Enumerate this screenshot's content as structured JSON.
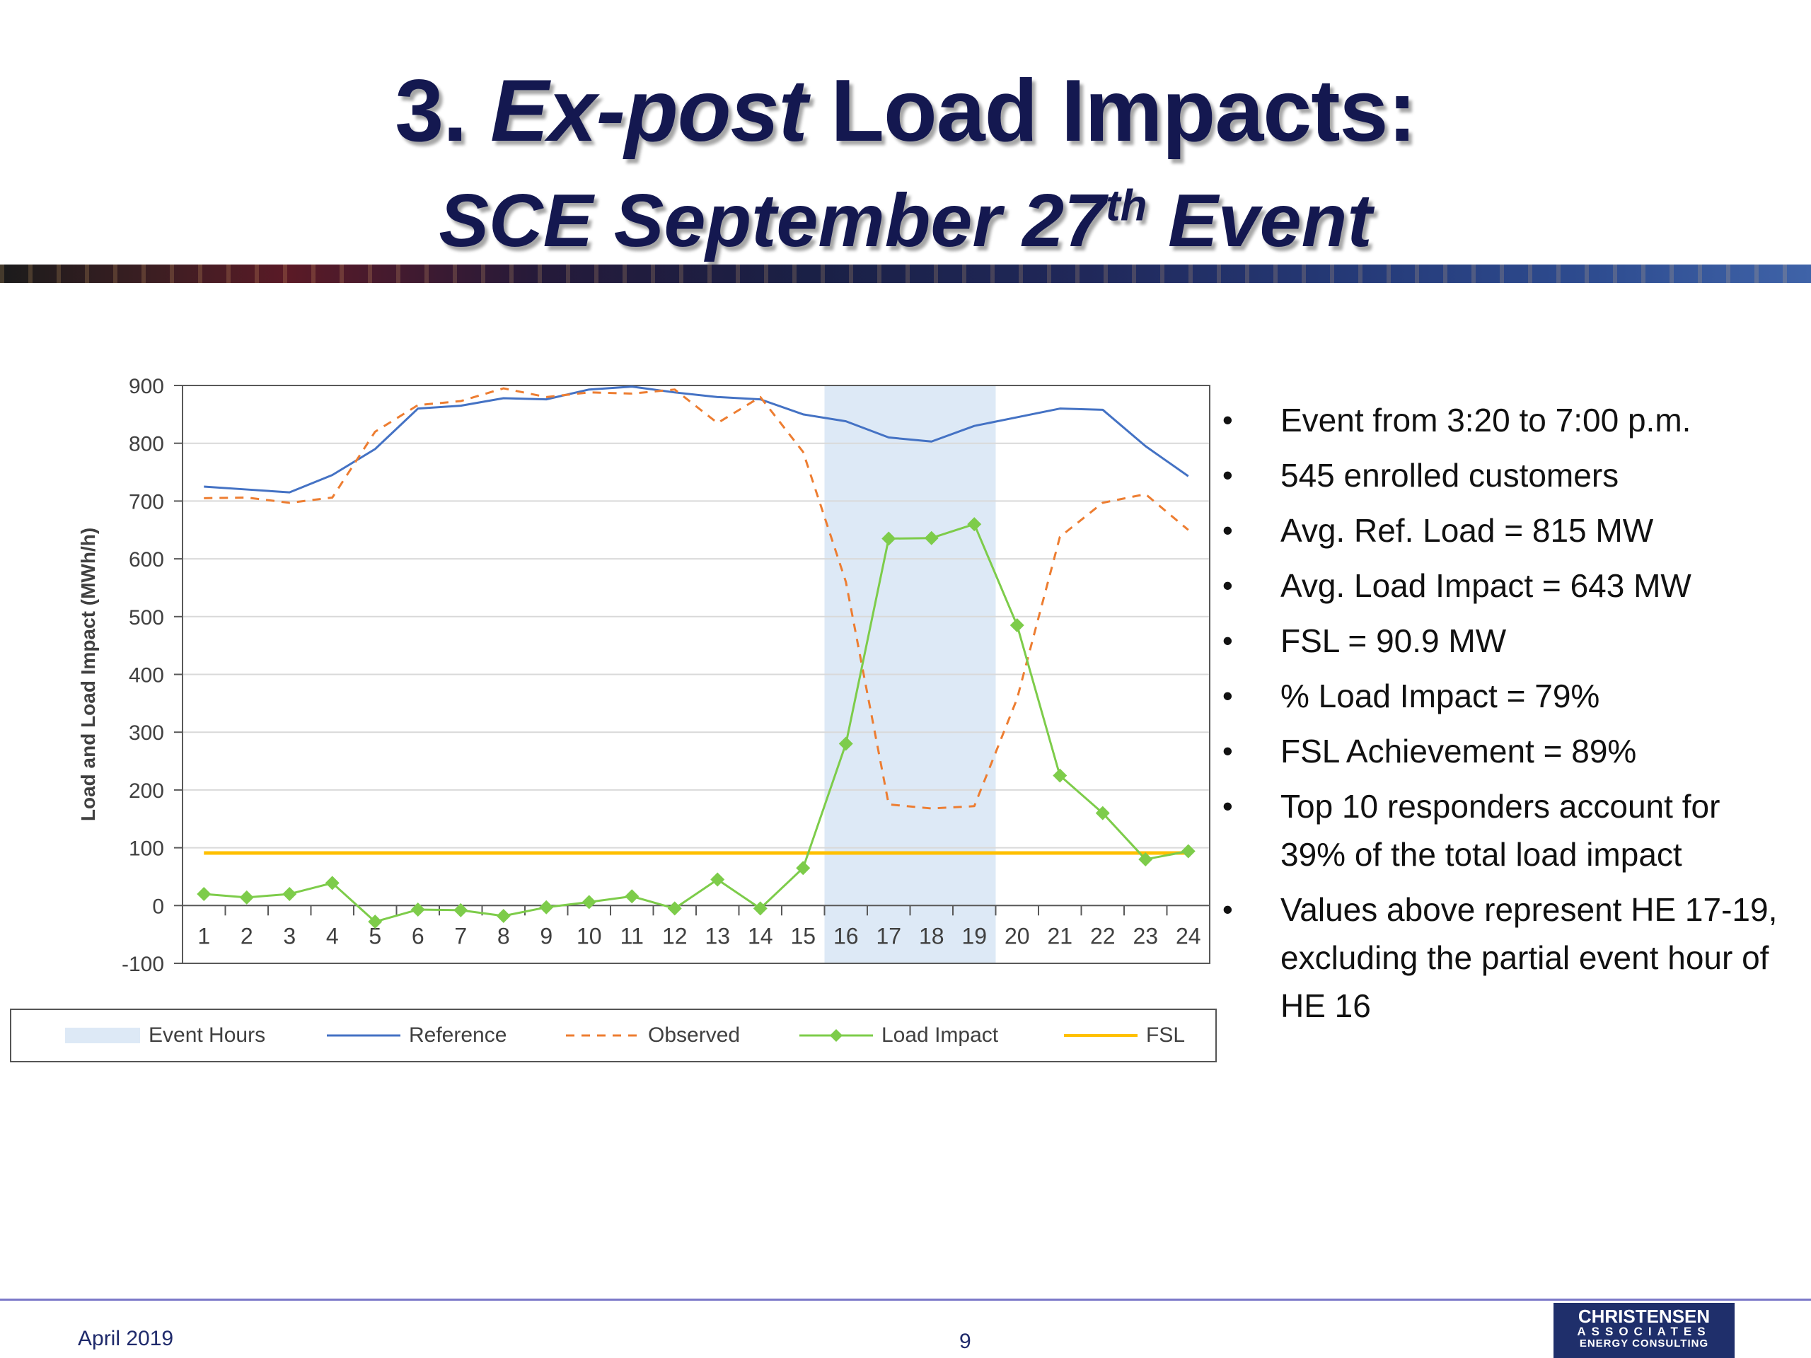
{
  "slide": {
    "title_line1": "3. Ex-post Load Impacts:",
    "title_line1_num": "3. ",
    "title_line1_italic": "Ex-post",
    "title_line1_rest": " Load Impacts:",
    "title_line2_main": "SCE September 27",
    "title_line2_sup": "th",
    "title_line2_end": " Event"
  },
  "bullets": [
    "Event from 3:20 to 7:00 p.m.",
    "545 enrolled customers",
    "Avg. Ref. Load = 815 MW",
    "Avg. Load Impact = 643 MW",
    "FSL = 90.9 MW",
    "% Load Impact = 79%",
    "FSL Achievement = 89%",
    "Top 10 responders account for 39% of the total load impact",
    "Values above represent HE 17-19, excluding the partial event hour of HE 16"
  ],
  "footer": {
    "date": "April 2019",
    "page": "9",
    "logo_line1": "CHRISTENSEN",
    "logo_line2": "ASSOCIATES",
    "logo_line3": "ENERGY CONSULTING"
  },
  "colors": {
    "title": "#141850",
    "reference": "#4472c4",
    "observed": "#ed7d31",
    "load_impact": "#7dcc4a",
    "fsl": "#ffc000",
    "event_hours": "#dde9f6"
  },
  "chart_data": {
    "type": "line",
    "title": "",
    "xlabel": "",
    "ylabel": "Load and Load Impact (MWh/h)",
    "ylim": [
      -100,
      900
    ],
    "yticks": [
      -100,
      0,
      100,
      200,
      300,
      400,
      500,
      600,
      700,
      800,
      900
    ],
    "x": [
      1,
      2,
      3,
      4,
      5,
      6,
      7,
      8,
      9,
      10,
      11,
      12,
      13,
      14,
      15,
      16,
      17,
      18,
      19,
      20,
      21,
      22,
      23,
      24
    ],
    "grid": true,
    "legend_position": "bottom",
    "event_hours": {
      "name": "Event Hours",
      "range": [
        15.5,
        19.5
      ]
    },
    "series": [
      {
        "name": "Reference",
        "style": "solid",
        "values": [
          725,
          720,
          715,
          745,
          790,
          860,
          865,
          878,
          876,
          893,
          898,
          888,
          880,
          876,
          850,
          838,
          810,
          803,
          830,
          845,
          860,
          858,
          795,
          743
        ]
      },
      {
        "name": "Observed",
        "style": "dashed",
        "values": [
          705,
          706,
          697,
          706,
          820,
          866,
          873,
          895,
          880,
          888,
          886,
          893,
          835,
          880,
          785,
          560,
          175,
          168,
          172,
          358,
          638,
          697,
          712,
          650
        ]
      },
      {
        "name": "Load Impact",
        "style": "solid-diamond",
        "values": [
          20,
          14,
          20,
          39,
          -28,
          -7,
          -8,
          -18,
          -3,
          6,
          16,
          -5,
          45,
          -5,
          65,
          280,
          635,
          636,
          660,
          485,
          225,
          160,
          80,
          94
        ]
      },
      {
        "name": "FSL",
        "style": "solid",
        "values": [
          90.9,
          90.9,
          90.9,
          90.9,
          90.9,
          90.9,
          90.9,
          90.9,
          90.9,
          90.9,
          90.9,
          90.9,
          90.9,
          90.9,
          90.9,
          90.9,
          90.9,
          90.9,
          90.9,
          90.9,
          90.9,
          90.9,
          90.9,
          90.9
        ]
      }
    ]
  }
}
